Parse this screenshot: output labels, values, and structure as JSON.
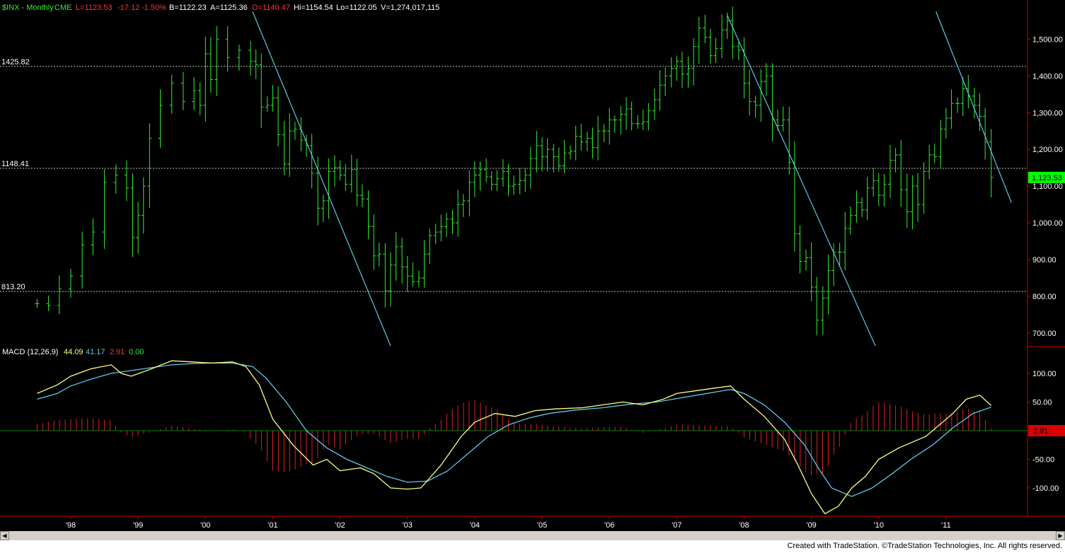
{
  "header": {
    "symbol": "$INX - Monthly",
    "exchange": "CME",
    "last": "L=1123.53",
    "change": "-17.12",
    "change_pct": "-1.50%",
    "bid": "B=1122.23",
    "ask": "A=1125.36",
    "open": "O=1140.47",
    "high": "Hi=1154.54",
    "low": "Lo=1122.05",
    "volume": "V=1,274,017,115"
  },
  "colors": {
    "bars": "#33ee33",
    "trendlines": "#5bc8e8",
    "macd_line": "#ffff80",
    "signal_line": "#5bc8e8",
    "histogram": "#dd2222",
    "axis": "#cc0000",
    "last_price_badge": "#00ff00"
  },
  "chart_data": [
    {
      "type": "bar",
      "subtype": "ohlc",
      "title": "$INX - Monthly",
      "ylim": [
        650,
        1580
      ],
      "yticks": [
        "700.00",
        "800.00",
        "900.00",
        "1,000.00",
        "1,100.00",
        "1,200.00",
        "1,300.00",
        "1,400.00",
        "1,500.00"
      ],
      "xticks": [
        "'98",
        "'99",
        "'00",
        "'01",
        "'02",
        "'03",
        "'04",
        "'05",
        "'06",
        "'07",
        "'08",
        "'09",
        "'10",
        "'11"
      ],
      "last_price_label": "1,123.53",
      "levels": [
        {
          "label": "1425.82",
          "value": 1425.82
        },
        {
          "label": "1148.41",
          "value": 1148.41
        },
        {
          "label": "813.20",
          "value": 813.2
        }
      ],
      "trendlines": [
        {
          "from": [
            2000.7,
            1575
          ],
          "to": [
            2002.75,
            665
          ]
        },
        {
          "from": [
            2007.75,
            1565
          ],
          "to": [
            2009.95,
            665
          ]
        },
        {
          "from": [
            2010.85,
            1575
          ],
          "to": [
            2011.97,
            1055
          ]
        }
      ],
      "closes": [
        [
          1997.5,
          780
        ],
        [
          1997.67,
          775
        ],
        [
          1997.83,
          820
        ],
        [
          1998.0,
          855
        ],
        [
          1998.17,
          940
        ],
        [
          1998.33,
          975
        ],
        [
          1998.5,
          1110
        ],
        [
          1998.67,
          1130
        ],
        [
          1998.83,
          1095
        ],
        [
          1998.92,
          960
        ],
        [
          1999.0,
          1020
        ],
        [
          1999.08,
          1100
        ],
        [
          1999.17,
          1230
        ],
        [
          1999.33,
          1320
        ],
        [
          1999.5,
          1380
        ],
        [
          1999.67,
          1330
        ],
        [
          1999.83,
          1360
        ],
        [
          1999.92,
          1320
        ],
        [
          2000.0,
          1460
        ],
        [
          2000.08,
          1390
        ],
        [
          2000.17,
          1500
        ],
        [
          2000.33,
          1450
        ],
        [
          2000.5,
          1470
        ],
        [
          2000.67,
          1440
        ],
        [
          2000.75,
          1430
        ],
        [
          2000.83,
          1315
        ],
        [
          2000.92,
          1320
        ],
        [
          2001.0,
          1340
        ],
        [
          2001.08,
          1240
        ],
        [
          2001.17,
          1160
        ],
        [
          2001.25,
          1250
        ],
        [
          2001.33,
          1255
        ],
        [
          2001.42,
          1225
        ],
        [
          2001.5,
          1210
        ],
        [
          2001.58,
          1135
        ],
        [
          2001.67,
          1040
        ],
        [
          2001.75,
          1060
        ],
        [
          2001.83,
          1140
        ],
        [
          2001.92,
          1150
        ],
        [
          2002.0,
          1130
        ],
        [
          2002.08,
          1105
        ],
        [
          2002.17,
          1145
        ],
        [
          2002.25,
          1075
        ],
        [
          2002.33,
          1065
        ],
        [
          2002.42,
          990
        ],
        [
          2002.5,
          910
        ],
        [
          2002.58,
          915
        ],
        [
          2002.67,
          815
        ],
        [
          2002.75,
          885
        ],
        [
          2002.83,
          935
        ],
        [
          2002.92,
          880
        ],
        [
          2003.0,
          855
        ],
        [
          2003.08,
          840
        ],
        [
          2003.17,
          850
        ],
        [
          2003.25,
          915
        ],
        [
          2003.33,
          965
        ],
        [
          2003.42,
          975
        ],
        [
          2003.5,
          990
        ],
        [
          2003.58,
          1010
        ],
        [
          2003.67,
          1000
        ],
        [
          2003.75,
          1050
        ],
        [
          2003.83,
          1060
        ],
        [
          2003.92,
          1110
        ],
        [
          2004.0,
          1130
        ],
        [
          2004.08,
          1145
        ],
        [
          2004.17,
          1125
        ],
        [
          2004.25,
          1105
        ],
        [
          2004.33,
          1120
        ],
        [
          2004.42,
          1140
        ],
        [
          2004.5,
          1100
        ],
        [
          2004.58,
          1105
        ],
        [
          2004.67,
          1115
        ],
        [
          2004.75,
          1130
        ],
        [
          2004.83,
          1175
        ],
        [
          2004.92,
          1210
        ],
        [
          2005.0,
          1180
        ],
        [
          2005.08,
          1200
        ],
        [
          2005.17,
          1180
        ],
        [
          2005.25,
          1155
        ],
        [
          2005.33,
          1190
        ],
        [
          2005.42,
          1195
        ],
        [
          2005.5,
          1235
        ],
        [
          2005.58,
          1220
        ],
        [
          2005.67,
          1230
        ],
        [
          2005.75,
          1205
        ],
        [
          2005.83,
          1250
        ],
        [
          2005.92,
          1250
        ],
        [
          2006.0,
          1280
        ],
        [
          2006.08,
          1280
        ],
        [
          2006.17,
          1295
        ],
        [
          2006.25,
          1310
        ],
        [
          2006.33,
          1270
        ],
        [
          2006.42,
          1270
        ],
        [
          2006.5,
          1275
        ],
        [
          2006.58,
          1305
        ],
        [
          2006.67,
          1335
        ],
        [
          2006.75,
          1375
        ],
        [
          2006.83,
          1400
        ],
        [
          2006.92,
          1420
        ],
        [
          2007.0,
          1440
        ],
        [
          2007.08,
          1405
        ],
        [
          2007.17,
          1420
        ],
        [
          2007.25,
          1480
        ],
        [
          2007.33,
          1530
        ],
        [
          2007.42,
          1505
        ],
        [
          2007.5,
          1455
        ],
        [
          2007.58,
          1475
        ],
        [
          2007.67,
          1525
        ],
        [
          2007.75,
          1550
        ],
        [
          2007.83,
          1480
        ],
        [
          2007.92,
          1470
        ],
        [
          2008.0,
          1380
        ],
        [
          2008.08,
          1330
        ],
        [
          2008.17,
          1320
        ],
        [
          2008.25,
          1385
        ],
        [
          2008.33,
          1400
        ],
        [
          2008.42,
          1280
        ],
        [
          2008.5,
          1265
        ],
        [
          2008.58,
          1280
        ],
        [
          2008.67,
          1165
        ],
        [
          2008.75,
          970
        ],
        [
          2008.83,
          895
        ],
        [
          2008.92,
          905
        ],
        [
          2009.0,
          825
        ],
        [
          2009.08,
          735
        ],
        [
          2009.17,
          795
        ],
        [
          2009.25,
          870
        ],
        [
          2009.33,
          920
        ],
        [
          2009.42,
          920
        ],
        [
          2009.5,
          985
        ],
        [
          2009.58,
          1020
        ],
        [
          2009.67,
          1055
        ],
        [
          2009.75,
          1035
        ],
        [
          2009.83,
          1095
        ],
        [
          2009.92,
          1115
        ],
        [
          2010.0,
          1075
        ],
        [
          2010.08,
          1105
        ],
        [
          2010.17,
          1170
        ],
        [
          2010.25,
          1185
        ],
        [
          2010.33,
          1090
        ],
        [
          2010.42,
          1030
        ],
        [
          2010.5,
          1100
        ],
        [
          2010.58,
          1050
        ],
        [
          2010.67,
          1140
        ],
        [
          2010.75,
          1185
        ],
        [
          2010.83,
          1180
        ],
        [
          2010.92,
          1255
        ],
        [
          2011.0,
          1285
        ],
        [
          2011.08,
          1325
        ],
        [
          2011.17,
          1325
        ],
        [
          2011.25,
          1365
        ],
        [
          2011.33,
          1345
        ],
        [
          2011.42,
          1320
        ],
        [
          2011.5,
          1290
        ],
        [
          2011.58,
          1220
        ],
        [
          2011.67,
          1123.5
        ]
      ]
    },
    {
      "type": "line",
      "title": "MACD (12,26,9)",
      "values_label": [
        "44.09",
        "41.17",
        "2.91",
        "0.00"
      ],
      "ylim": [
        -145,
        145
      ],
      "yticks": [
        "100.00",
        "50.00",
        "-50.00",
        "-100.00"
      ],
      "last_value_label": "2.91",
      "series": [
        {
          "name": "MACD",
          "points": [
            [
              1997.5,
              65
            ],
            [
              1997.8,
              80
            ],
            [
              1998.0,
              95
            ],
            [
              1998.3,
              108
            ],
            [
              1998.6,
              115
            ],
            [
              1998.75,
              100
            ],
            [
              1998.9,
              95
            ],
            [
              1999.2,
              108
            ],
            [
              1999.5,
              122
            ],
            [
              1999.8,
              120
            ],
            [
              2000.1,
              118
            ],
            [
              2000.4,
              120
            ],
            [
              2000.6,
              112
            ],
            [
              2000.8,
              80
            ],
            [
              2001.0,
              20
            ],
            [
              2001.3,
              -25
            ],
            [
              2001.6,
              -60
            ],
            [
              2001.8,
              -50
            ],
            [
              2002.0,
              -70
            ],
            [
              2002.3,
              -65
            ],
            [
              2002.5,
              -75
            ],
            [
              2002.75,
              -100
            ],
            [
              2003.0,
              -102
            ],
            [
              2003.2,
              -100
            ],
            [
              2003.5,
              -60
            ],
            [
              2003.8,
              -10
            ],
            [
              2004.0,
              15
            ],
            [
              2004.3,
              30
            ],
            [
              2004.6,
              25
            ],
            [
              2004.9,
              35
            ],
            [
              2005.2,
              38
            ],
            [
              2005.6,
              40
            ],
            [
              2005.9,
              45
            ],
            [
              2006.2,
              50
            ],
            [
              2006.5,
              45
            ],
            [
              2006.8,
              55
            ],
            [
              2007.0,
              65
            ],
            [
              2007.3,
              70
            ],
            [
              2007.6,
              75
            ],
            [
              2007.8,
              78
            ],
            [
              2008.0,
              55
            ],
            [
              2008.3,
              25
            ],
            [
              2008.6,
              -15
            ],
            [
              2008.8,
              -60
            ],
            [
              2009.0,
              -110
            ],
            [
              2009.2,
              -145
            ],
            [
              2009.4,
              -132
            ],
            [
              2009.6,
              -100
            ],
            [
              2009.8,
              -80
            ],
            [
              2010.0,
              -50
            ],
            [
              2010.3,
              -30
            ],
            [
              2010.5,
              -20
            ],
            [
              2010.7,
              -10
            ],
            [
              2010.9,
              10
            ],
            [
              2011.1,
              30
            ],
            [
              2011.3,
              55
            ],
            [
              2011.5,
              62
            ],
            [
              2011.67,
              44
            ]
          ]
        },
        {
          "name": "Signal",
          "points": [
            [
              1997.5,
              55
            ],
            [
              1997.8,
              65
            ],
            [
              1998.0,
              78
            ],
            [
              1998.3,
              90
            ],
            [
              1998.6,
              100
            ],
            [
              1998.9,
              105
            ],
            [
              1999.2,
              110
            ],
            [
              1999.5,
              115
            ],
            [
              1999.8,
              117
            ],
            [
              2000.1,
              118
            ],
            [
              2000.4,
              118
            ],
            [
              2000.7,
              112
            ],
            [
              2000.9,
              92
            ],
            [
              2001.2,
              50
            ],
            [
              2001.5,
              0
            ],
            [
              2001.8,
              -30
            ],
            [
              2002.1,
              -50
            ],
            [
              2002.4,
              -65
            ],
            [
              2002.7,
              -80
            ],
            [
              2003.0,
              -90
            ],
            [
              2003.3,
              -88
            ],
            [
              2003.6,
              -70
            ],
            [
              2003.9,
              -40
            ],
            [
              2004.2,
              -10
            ],
            [
              2004.5,
              10
            ],
            [
              2004.8,
              22
            ],
            [
              2005.1,
              30
            ],
            [
              2005.5,
              36
            ],
            [
              2005.9,
              40
            ],
            [
              2006.3,
              46
            ],
            [
              2006.7,
              50
            ],
            [
              2007.0,
              56
            ],
            [
              2007.4,
              64
            ],
            [
              2007.8,
              72
            ],
            [
              2008.0,
              65
            ],
            [
              2008.3,
              45
            ],
            [
              2008.6,
              15
            ],
            [
              2008.9,
              -25
            ],
            [
              2009.1,
              -65
            ],
            [
              2009.3,
              -100
            ],
            [
              2009.6,
              -115
            ],
            [
              2009.9,
              -100
            ],
            [
              2010.2,
              -75
            ],
            [
              2010.5,
              -48
            ],
            [
              2010.8,
              -25
            ],
            [
              2011.1,
              5
            ],
            [
              2011.4,
              30
            ],
            [
              2011.67,
              41
            ]
          ]
        }
      ]
    }
  ],
  "footer": {
    "credit": "Created with TradeStation. ©TradeStation Technologies, Inc. All rights reserved."
  }
}
